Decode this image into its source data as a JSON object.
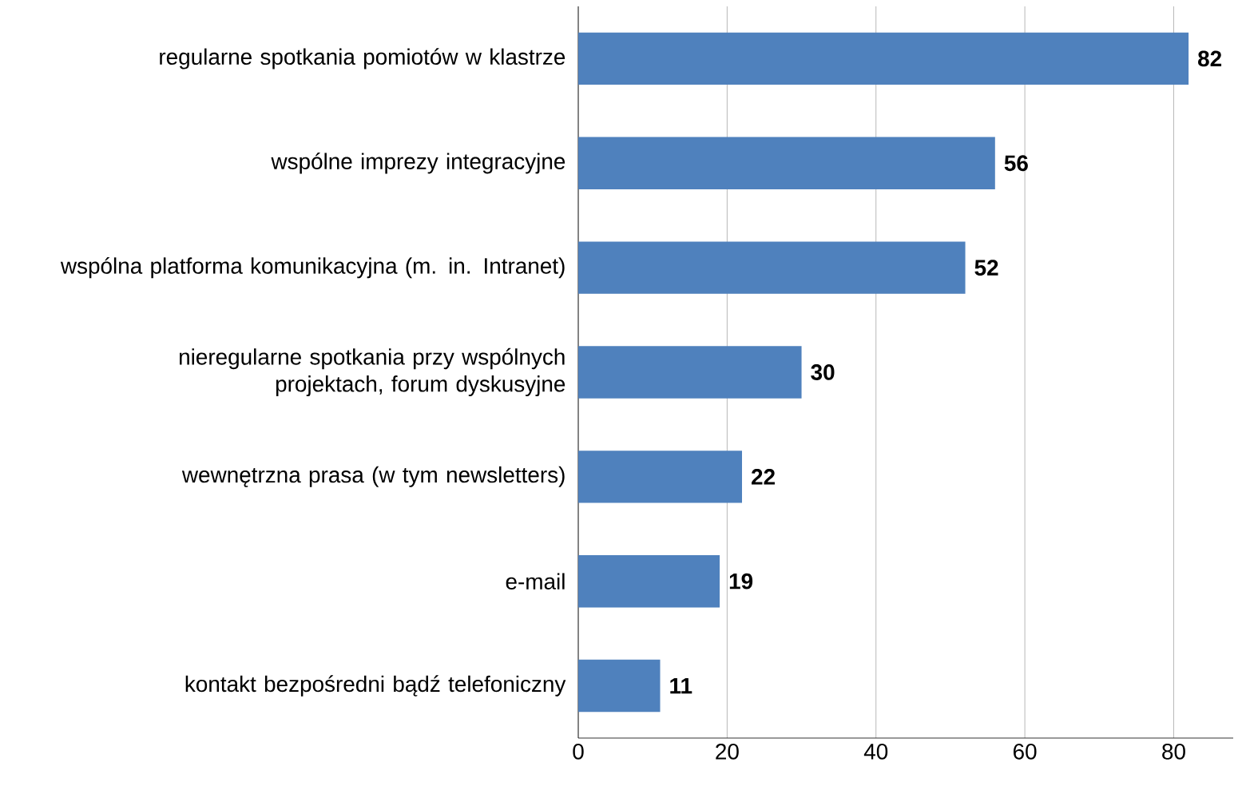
{
  "chart_data": {
    "type": "bar",
    "orientation": "horizontal",
    "categories": [
      "regularne spotkania pomiotów w klastrze",
      "wspólne imprezy integracyjne",
      "wspólna platforma komunikacyjna (m. in. Intranet)",
      "nieregularne spotkania przy wspólnych projektach, forum dyskusyjne",
      "wewnętrzna prasa (w tym newsletters)",
      "e-mail",
      "kontakt bezpośredni bądź telefoniczny"
    ],
    "values": [
      82,
      56,
      52,
      30,
      22,
      19,
      11
    ],
    "color": "#4f81bd",
    "xlim": [
      0,
      88
    ],
    "xticks": [
      0,
      20,
      40,
      60,
      80
    ],
    "grid": "x",
    "data_labels": true
  }
}
